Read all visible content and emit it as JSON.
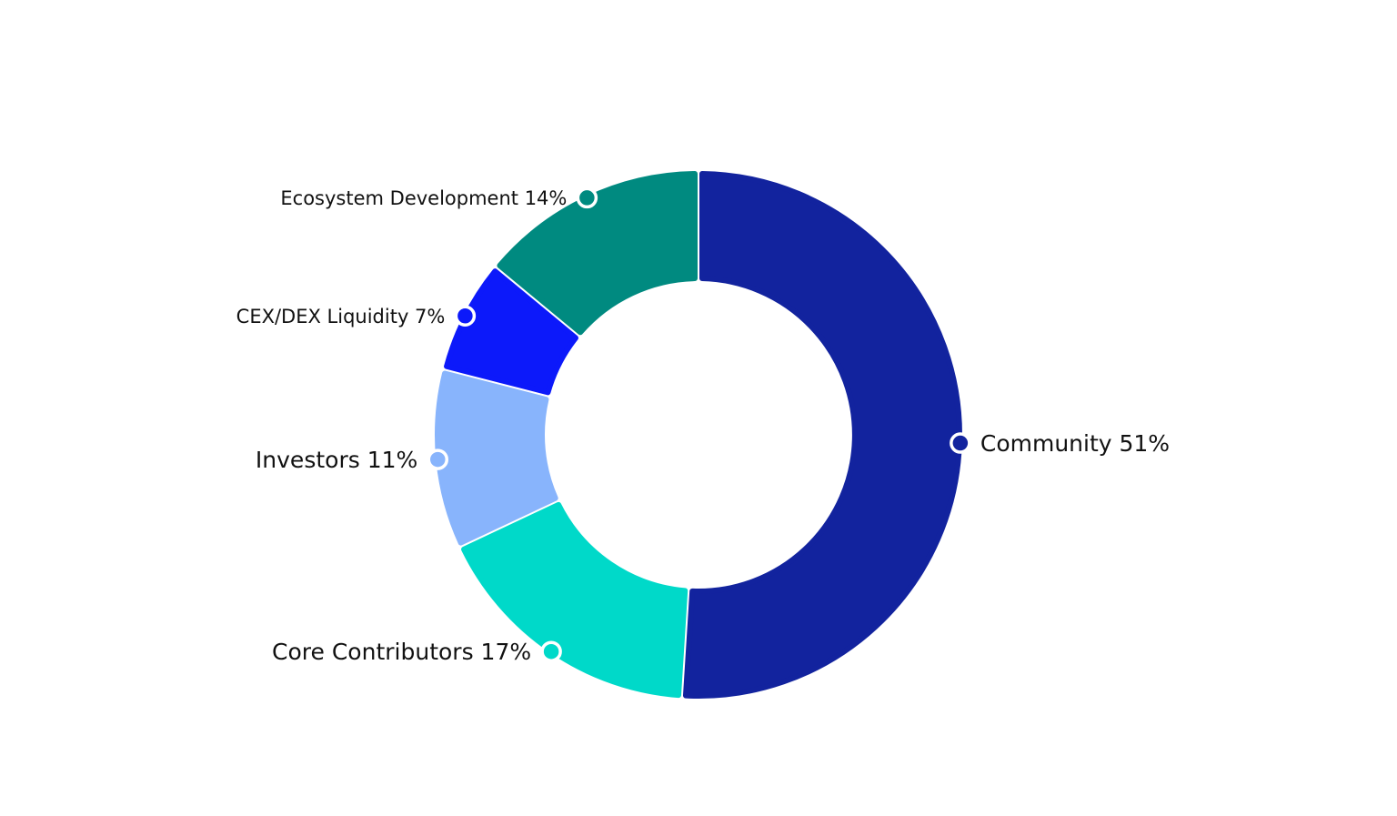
{
  "chart_data": {
    "type": "pie",
    "variant": "donut",
    "categories": [
      "Community",
      "Core Contributors",
      "Investors",
      "CEX/DEX Liquidity",
      "Ecosystem Development"
    ],
    "values": [
      51,
      17,
      11,
      7,
      14
    ],
    "value_unit": "%",
    "legend": "none",
    "slices": [
      {
        "name": "Community",
        "value": 51,
        "label": "Community 51%",
        "color": "#12239E"
      },
      {
        "name": "Core Contributors",
        "value": 17,
        "label": "Core Contributors 17%",
        "color": "#00D9C9"
      },
      {
        "name": "Investors",
        "value": 11,
        "label": "Investors 11%",
        "color": "#88B4FC"
      },
      {
        "name": "CEX/DEX Liquidity",
        "value": 7,
        "label": "CEX/DEX Liquidity 7%",
        "color": "#0C19FA"
      },
      {
        "name": "Ecosystem Development",
        "value": 14,
        "label": "Ecosystem Development 14%",
        "color": "#008A80"
      }
    ]
  }
}
